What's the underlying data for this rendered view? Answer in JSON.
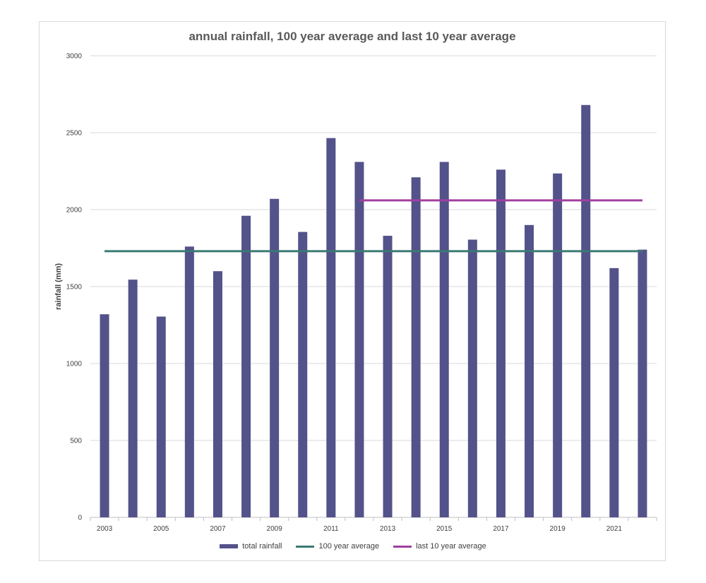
{
  "chart_data": {
    "type": "bar",
    "title": "annual rainfall, 100 year average and last 10 year average",
    "ylabel": "rainfall (mm)",
    "xlabel": "",
    "ylim": [
      0,
      3000
    ],
    "yticks": [
      "0",
      "500",
      "1000",
      "1500",
      "2000",
      "2500",
      "3000"
    ],
    "categories": [
      "2003",
      "2004",
      "2005",
      "2006",
      "2007",
      "2008",
      "2009",
      "2010",
      "2011",
      "2012",
      "2013",
      "2014",
      "2015",
      "2016",
      "2017",
      "2018",
      "2019",
      "2020",
      "2021",
      "2022"
    ],
    "xtick_labels": [
      "2003",
      "",
      "2005",
      "",
      "2007",
      "",
      "2009",
      "",
      "2011",
      "",
      "2013",
      "",
      "2015",
      "",
      "2017",
      "",
      "2019",
      "",
      "2021",
      ""
    ],
    "series": [
      {
        "name": "total rainfall",
        "kind": "bar",
        "color": "#54528a",
        "values": [
          1320,
          1545,
          1305,
          1760,
          1600,
          1960,
          2070,
          1855,
          2465,
          2310,
          1830,
          2210,
          2310,
          1805,
          2260,
          1900,
          2235,
          2680,
          1620,
          1740
        ]
      },
      {
        "name": "100 year average",
        "kind": "line",
        "color": "#3a7a73",
        "value": 1730,
        "from": "2003",
        "to": "2022"
      },
      {
        "name": "last 10 year average",
        "kind": "line",
        "color": "#a040a0",
        "value": 2060,
        "from": "2012",
        "to": "2022"
      }
    ],
    "grid": true,
    "legend": "bottom"
  }
}
